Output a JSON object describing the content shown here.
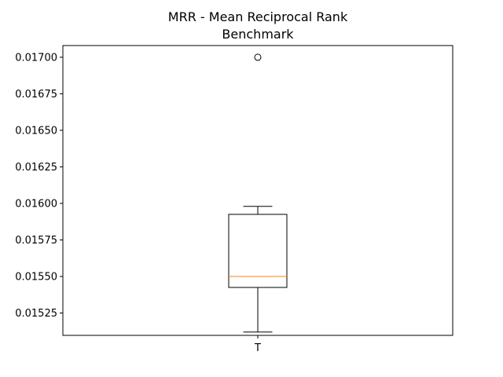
{
  "chart_data": {
    "type": "box",
    "title_line1": "MRR - Mean Reciprocal Rank",
    "title_line2": "Benchmark",
    "categories": [
      "T"
    ],
    "ylim": [
      0.015097,
      0.01708
    ],
    "yticks": [
      {
        "value": 0.01525,
        "label": "0.01525"
      },
      {
        "value": 0.0155,
        "label": "0.01550"
      },
      {
        "value": 0.01575,
        "label": "0.01575"
      },
      {
        "value": 0.016,
        "label": "0.01600"
      },
      {
        "value": 0.01625,
        "label": "0.01625"
      },
      {
        "value": 0.0165,
        "label": "0.01650"
      },
      {
        "value": 0.01675,
        "label": "0.01675"
      },
      {
        "value": 0.017,
        "label": "0.01700"
      }
    ],
    "boxes": [
      {
        "category": "T",
        "whisker_low": 0.01512,
        "q1": 0.015425,
        "median": 0.0155,
        "q3": 0.015925,
        "whisker_high": 0.01598,
        "outliers": [
          0.017
        ]
      }
    ],
    "colors": {
      "box": "#000000",
      "median": "#ff7f0e",
      "axes": "#000000"
    }
  }
}
